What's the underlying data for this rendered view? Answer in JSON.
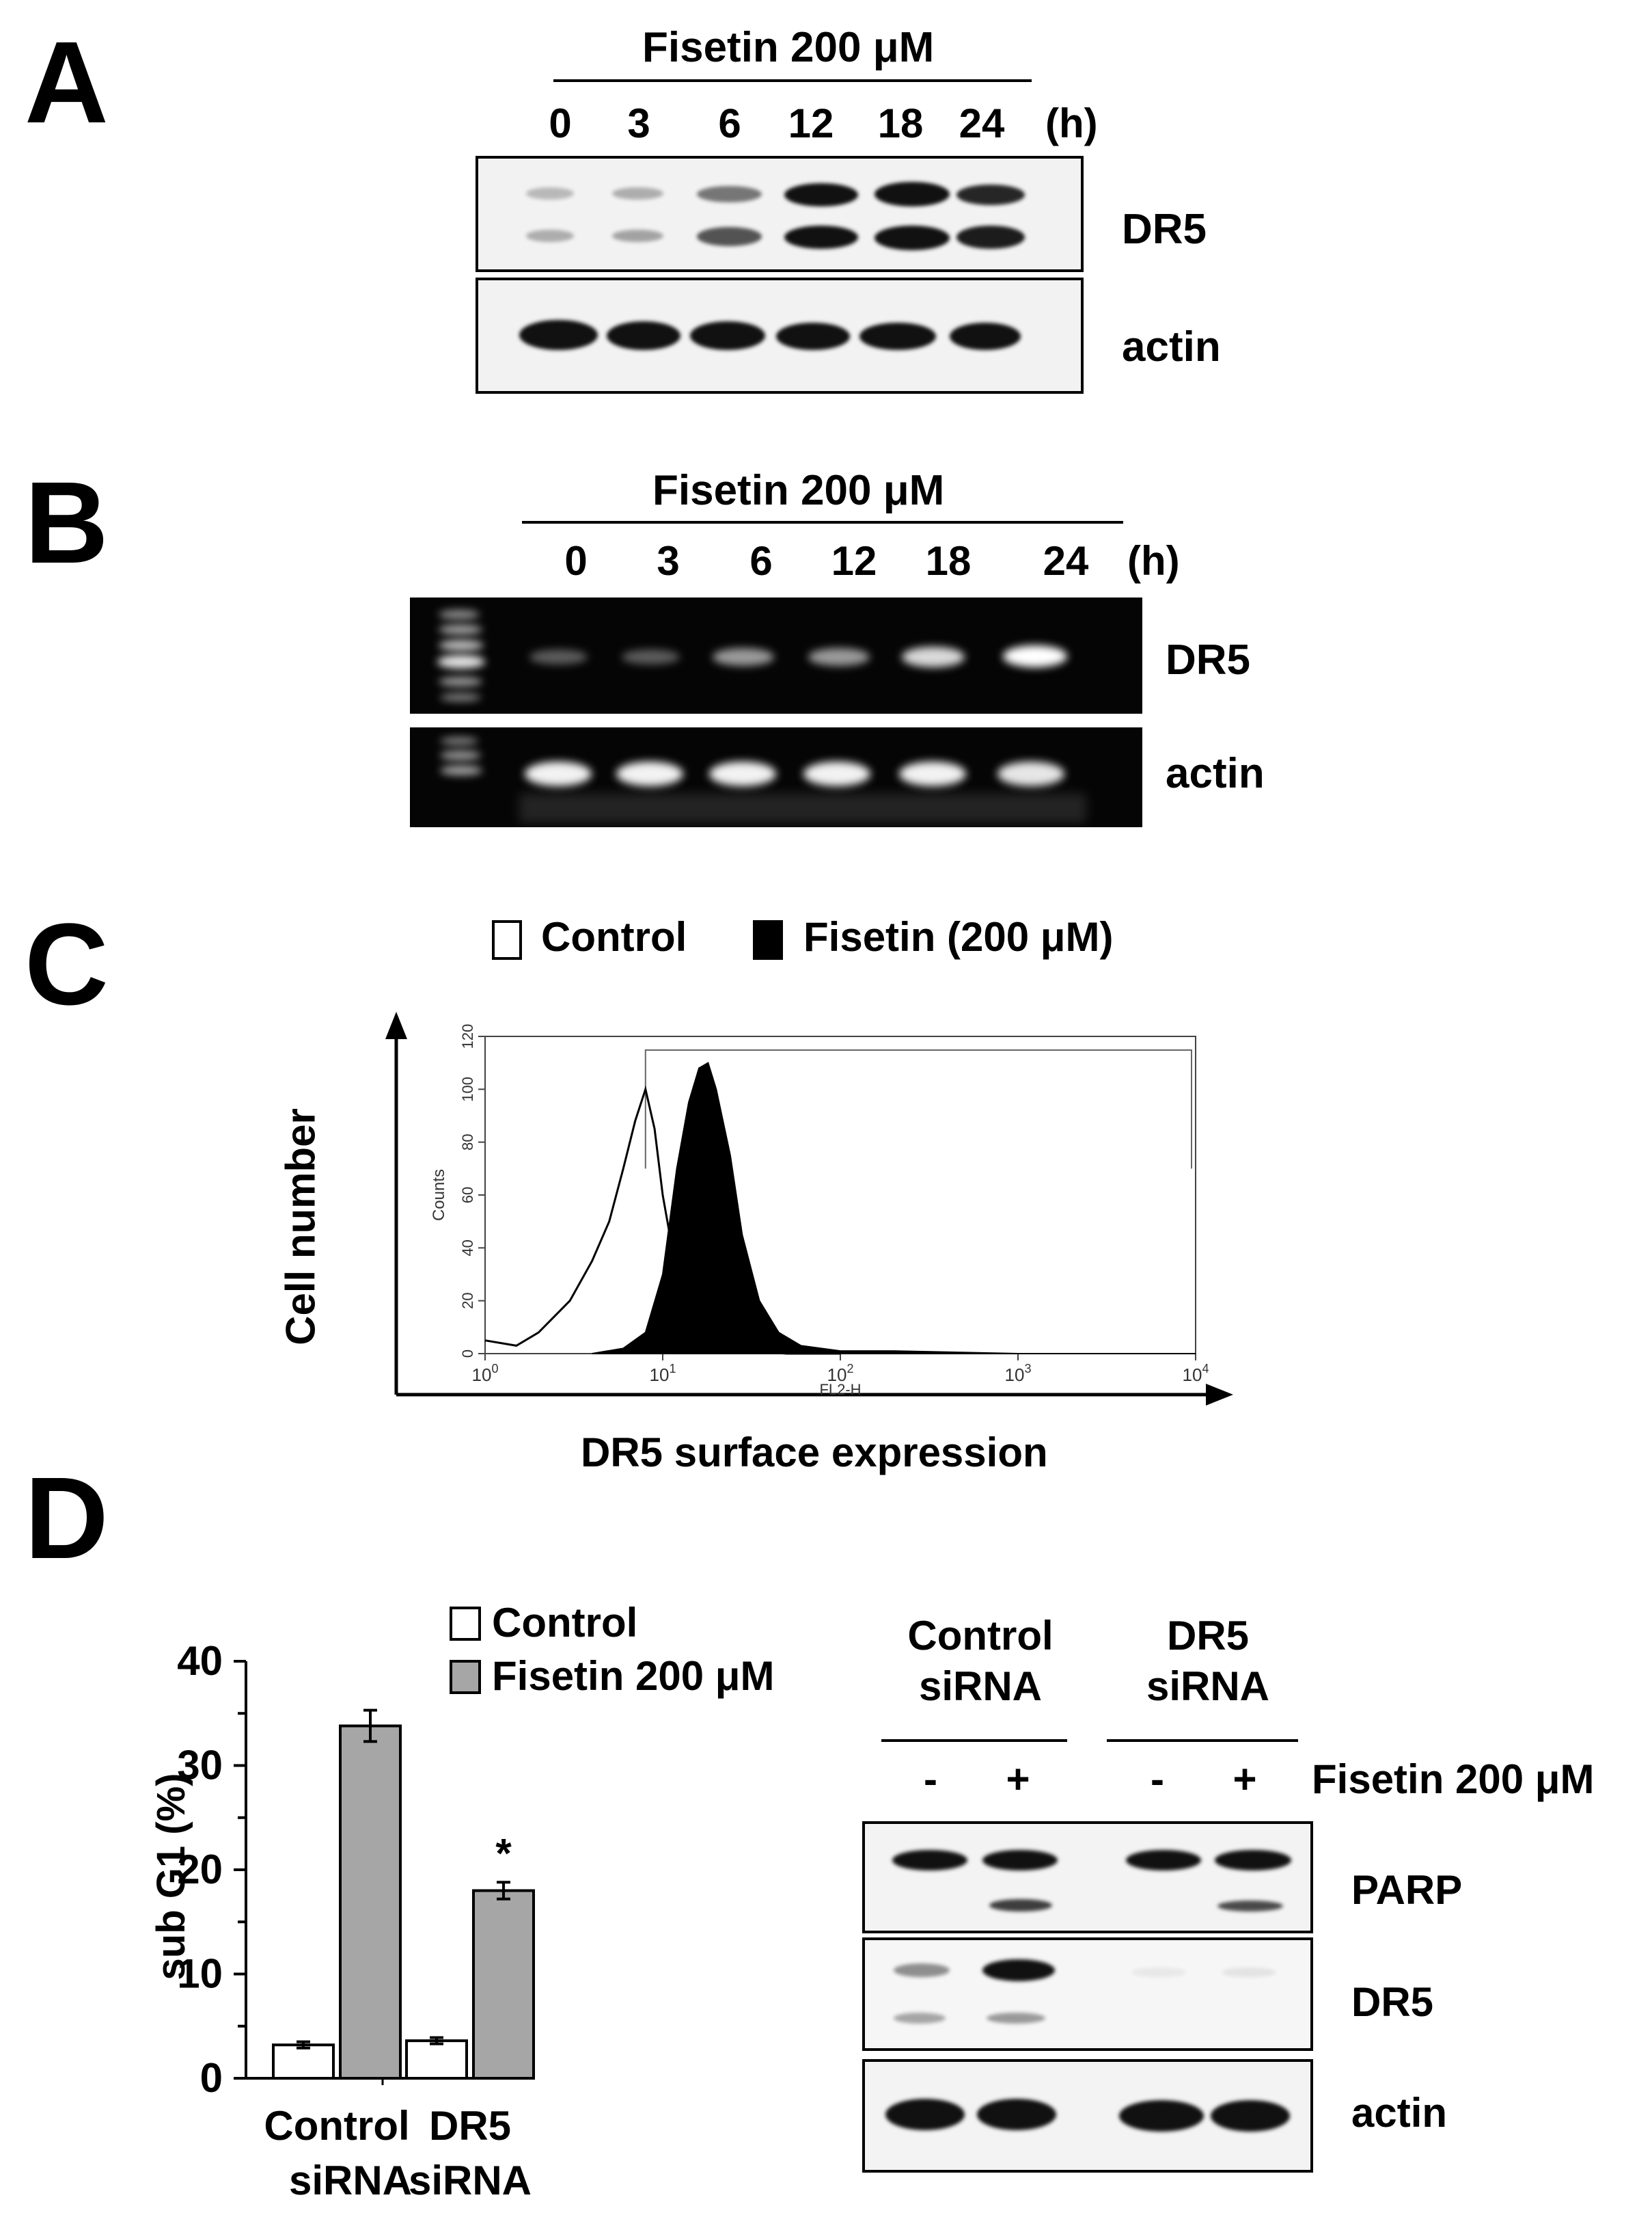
{
  "panels": {
    "A": {
      "letter": "A",
      "treatment": "Fisetin 200 μM",
      "timepoints": [
        "0",
        "3",
        "6",
        "12",
        "18",
        "24"
      ],
      "unit": "(h)",
      "rows": [
        "DR5",
        "actin"
      ],
      "band_intensity": {
        "DR5_upper": [
          0.25,
          0.3,
          0.55,
          1.0,
          1.0,
          0.9
        ],
        "DR5_lower": [
          0.3,
          0.35,
          0.7,
          1.0,
          1.0,
          0.95
        ],
        "actin": [
          1,
          1,
          1,
          1,
          1,
          1
        ]
      }
    },
    "B": {
      "letter": "B",
      "treatment": "Fisetin 200 μM",
      "timepoints": [
        "0",
        "3",
        "6",
        "12",
        "18",
        "24"
      ],
      "unit": "(h)",
      "rows": [
        "DR5",
        "actin"
      ],
      "band_intensity": {
        "DR5": [
          0.3,
          0.3,
          0.55,
          0.55,
          0.8,
          1.0
        ],
        "actin": [
          1,
          1,
          1,
          1,
          1,
          1
        ]
      }
    },
    "C": {
      "letter": "C",
      "legend": {
        "control": "Control",
        "fisetin": "Fisetin (200 μM)"
      },
      "y_axis_label": "Cell number",
      "x_axis_label": "DR5 surface expression",
      "inner_y_label": "Counts",
      "inner_x_label": "FL2-H"
    },
    "D": {
      "letter": "D",
      "blot_groups": [
        "Control siRNA",
        "DR5 siRNA"
      ],
      "blot_groups_lines": [
        [
          "Control",
          "siRNA"
        ],
        [
          "DR5",
          "siRNA"
        ]
      ],
      "lane_signs": [
        "-",
        "+",
        "-",
        "+"
      ],
      "treatment": "Fisetin 200 μM",
      "rows": [
        "PARP",
        "DR5",
        "actin"
      ]
    }
  },
  "chart_data": [
    {
      "type": "area",
      "panel": "C",
      "xscale": "log",
      "xlim": [
        1,
        10000
      ],
      "ylim": [
        0,
        120
      ],
      "xticks": [
        "10^0",
        "10^1",
        "10^2",
        "10^3",
        "10^4"
      ],
      "yticks": [
        "0",
        "20",
        "40",
        "60",
        "80",
        "100",
        "120"
      ],
      "xlabel": "FL2-H",
      "ylabel": "Counts",
      "series": [
        {
          "name": "Control",
          "style": "outline",
          "x": [
            1,
            1.5,
            2,
            3,
            4,
            5,
            6,
            7,
            8,
            9,
            10,
            12,
            14,
            17,
            20,
            30,
            50,
            100
          ],
          "y": [
            5,
            3,
            8,
            20,
            35,
            50,
            70,
            88,
            100,
            85,
            60,
            30,
            12,
            5,
            2,
            1,
            0,
            0
          ]
        },
        {
          "name": "Fisetin (200 μM)",
          "style": "filled",
          "x": [
            4,
            6,
            8,
            10,
            12,
            14,
            16,
            18,
            20,
            24,
            28,
            35,
            45,
            60,
            100,
            200,
            1000,
            10000
          ],
          "y": [
            0,
            2,
            8,
            30,
            70,
            95,
            108,
            110,
            100,
            75,
            45,
            20,
            8,
            3,
            1,
            1,
            0,
            0
          ]
        }
      ],
      "gate": {
        "x_start": 8,
        "x_end": 10000
      }
    },
    {
      "type": "bar",
      "panel": "D",
      "categories": [
        "Control siRNA",
        "DR5 siRNA"
      ],
      "category_lines": [
        [
          "Control",
          "siRNA"
        ],
        [
          "DR5",
          "siRNA"
        ]
      ],
      "ylabel": "sub G1 (%)",
      "ylim": [
        0,
        40
      ],
      "yticks": [
        0,
        10,
        20,
        30,
        40
      ],
      "series": [
        {
          "name": "Control",
          "values": [
            3.2,
            3.6
          ],
          "errors": [
            0.3,
            0.3
          ],
          "color": "#ffffff"
        },
        {
          "name": "Fisetin 200 μM",
          "values": [
            33.8,
            18.0
          ],
          "errors": [
            1.5,
            0.8
          ],
          "color": "#a6a6a6"
        }
      ],
      "annotations": [
        {
          "category": "DR5 siRNA",
          "series": "Fisetin 200 μM",
          "text": "*"
        }
      ]
    }
  ]
}
